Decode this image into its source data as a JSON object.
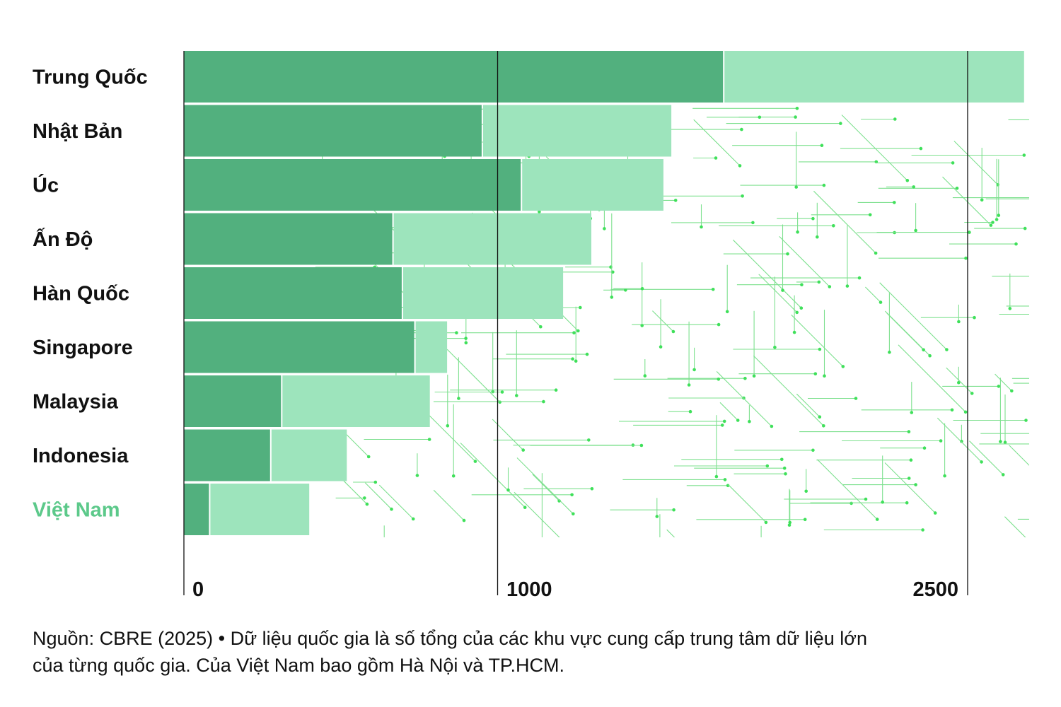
{
  "chart_data": {
    "type": "bar",
    "stacked": true,
    "orientation": "horizontal",
    "categories": [
      "Trung Quốc",
      "Nhật Bản",
      "Úc",
      "Ấn Độ",
      "Hàn Quốc",
      "Singapore",
      "Malaysia",
      "Indonesia",
      "Việt Nam"
    ],
    "series": [
      {
        "values": [
          1720,
          950,
          1075,
          665,
          695,
          735,
          310,
          275,
          80
        ]
      },
      {
        "values": [
          960,
          605,
          455,
          635,
          515,
          105,
          475,
          245,
          320
        ]
      }
    ],
    "xticks": [
      "0",
      "1000",
      "2500"
    ],
    "highlight_category": "Việt Nam",
    "title": "",
    "xlabel": "",
    "ylabel": "",
    "grid": false,
    "legend": "none"
  },
  "colors": {
    "series_dark": "#52b07e",
    "series_light": "#9de4bc",
    "highlight_label": "#5cc98a",
    "circuit": "#7de08e",
    "circuit_dot": "#3fe05a",
    "axis": "#111111"
  },
  "footnote": {
    "line1": "Nguồn: CBRE (2025) • Dữ liệu quốc gia là số tổng của các khu vực cung cấp trung tâm dữ liệu lớn",
    "line2": "của từng quốc gia. Của Việt Nam bao gồm Hà Nội và TP.HCM."
  }
}
